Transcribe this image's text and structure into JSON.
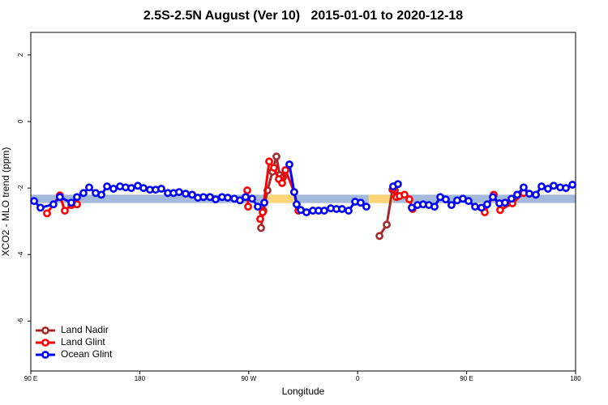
{
  "chart_data": {
    "type": "line",
    "title": "2.5S-2.5N August (Ver 10)   2015-01-01 to 2020-12-18",
    "x_label": "Longitude",
    "y_label": "XCO2 - MLO trend (ppm)",
    "xlim": [
      90,
      540
    ],
    "ylim": [
      -7.5,
      2.68
    ],
    "xticks": [
      {
        "value": 90,
        "label": "90 E"
      },
      180,
      {
        "value": 270,
        "label": "90 W"
      },
      {
        "value": 360,
        "label": "0"
      },
      {
        "value": 450,
        "label": "90 E"
      },
      {
        "value": 540,
        "label": "180"
      }
    ],
    "yticks": [
      2,
      0,
      -2,
      -4,
      -6
    ],
    "legend": "bottom-left",
    "band": {
      "values": [
        -2.45,
        -2.2
      ],
      "color": "#a3badc",
      "highlights": [
        [
          285.5,
          309
        ],
        [
          369,
          389
        ]
      ],
      "highlight_color": "#ffd57a"
    },
    "series": [
      {
        "name": "Land Nadir",
        "color": "#a52a2a",
        "x": [
          280.2,
          282.2,
          285.5,
          289.6,
          292.9,
          295.6,
          298.3,
          null,
          378,
          384,
          388.7,
          390.7
        ],
        "values": [
          -3.2,
          -2.68,
          -2.07,
          -1.51,
          -1.05,
          -1.61,
          -1.68,
          null,
          -3.44,
          -3.1,
          -2.05,
          -2.07
        ]
      },
      {
        "name": "Land Glint",
        "color": "#ff0000",
        "x": [
          103.4,
          114,
          118.1,
          123.5,
          128.2,
          null,
          268.8,
          269.5,
          null,
          279.5,
          281.5,
          286.9,
          290.9,
          294.9,
          297.6,
          300.3,
          307.6,
          311,
          null,
          389.3,
          392,
          394.7,
          398.7,
          402.7,
          405.4,
          null,
          465,
          472.4,
          477.7,
          487.8,
          497.1
        ],
        "values": [
          -2.76,
          -2.22,
          -2.68,
          -2.51,
          -2.49,
          null,
          -2.07,
          -2.56,
          null,
          -2.93,
          -2.73,
          -1.2,
          -1.39,
          -1.73,
          -1.85,
          -1.46,
          -2.12,
          -2.68,
          null,
          -2.02,
          -2.27,
          -2.24,
          -2.2,
          -2.34,
          -2.63,
          null,
          -2.73,
          -2.2,
          -2.66,
          -2.46,
          -2.15
        ]
      },
      {
        "name": "Ocean Glint",
        "color": "#0000ff",
        "x": [
          92.7,
          98,
          108.7,
          114,
          123.5,
          128.2,
          133.5,
          138.2,
          143.6,
          148.3,
          153,
          158.3,
          163.7,
          168.3,
          173,
          178.4,
          183.1,
          188.4,
          193.1,
          197.8,
          203.2,
          207.9,
          212.5,
          217.9,
          223.3,
          228,
          232.6,
          238,
          242.7,
          248,
          252.7,
          258.1,
          262.8,
          267.5,
          272.8,
          277.5,
          282.9,
          null,
          303.6,
          307.6,
          309.6,
          313,
          317.7,
          323,
          327.7,
          332.4,
          337.8,
          342.5,
          347.1,
          352.5,
          357.9,
          362.5,
          367.2,
          null,
          389.3,
          393.3,
          null,
          404.7,
          409.4,
          414.1,
          418.8,
          423.5,
          428.2,
          432.8,
          437.5,
          442.2,
          446.9,
          451.6,
          457,
          462.3,
          467,
          471.7,
          477.1,
          481.7,
          487.1,
          491.8,
          497.1,
          501.8,
          507.2,
          511.9,
          517.2,
          521.9,
          527.3,
          532,
          537.4
        ],
        "values": [
          -2.39,
          -2.59,
          -2.49,
          -2.27,
          -2.44,
          -2.27,
          -2.15,
          -1.98,
          -2.15,
          -2.2,
          -1.95,
          -2.02,
          -1.95,
          -1.98,
          -2.0,
          -1.93,
          -2.0,
          -2.05,
          -2.05,
          -2.02,
          -2.15,
          -2.15,
          -2.12,
          -2.17,
          -2.2,
          -2.29,
          -2.27,
          -2.27,
          -2.34,
          -2.27,
          -2.29,
          -2.32,
          -2.37,
          -2.27,
          -2.32,
          -2.56,
          -2.44,
          null,
          -1.29,
          -2.12,
          -2.49,
          -2.66,
          -2.73,
          -2.68,
          -2.68,
          -2.68,
          -2.61,
          -2.63,
          -2.63,
          -2.68,
          -2.41,
          -2.44,
          -2.56,
          null,
          -1.95,
          -1.88,
          null,
          -2.59,
          -2.51,
          -2.49,
          -2.51,
          -2.56,
          -2.27,
          -2.34,
          -2.51,
          -2.37,
          -2.32,
          -2.39,
          -2.56,
          -2.59,
          -2.49,
          -2.27,
          -2.46,
          -2.44,
          -2.32,
          -2.2,
          -1.98,
          -2.17,
          -2.2,
          -1.95,
          -2.02,
          -1.93,
          -1.98,
          -2.0,
          -1.9
        ]
      }
    ]
  }
}
